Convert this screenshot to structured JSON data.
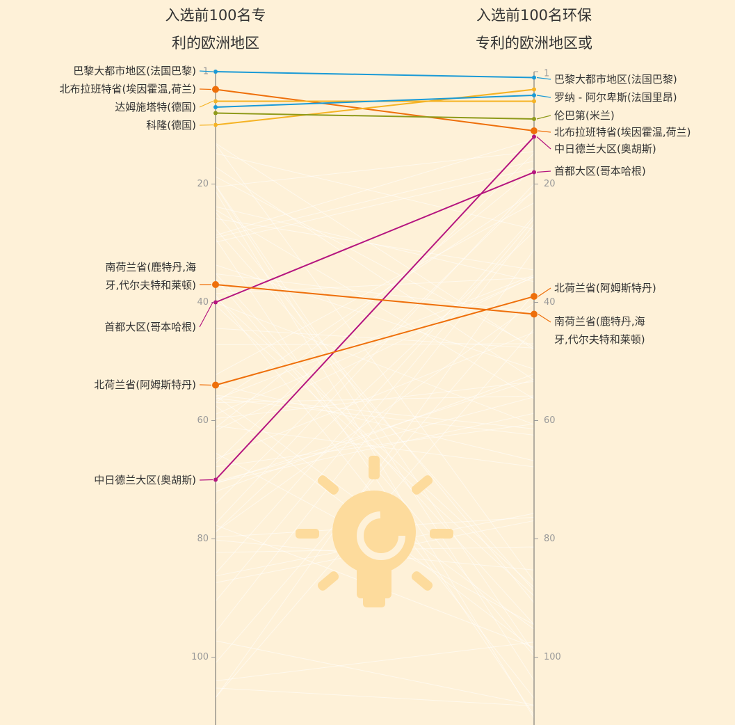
{
  "chart_data": {
    "type": "slope",
    "titles": [
      "入选前100名专\n利的欧洲地区",
      "入选前100名环保\n专利的欧洲地区或"
    ],
    "ylim": [
      1,
      111
    ],
    "yticks": [
      1,
      20,
      40,
      60,
      80,
      100
    ],
    "series": [
      {
        "name": "巴黎大都市地区(法国巴黎)",
        "color": "#1a9ad6",
        "marker": "small",
        "labels": [
          "left",
          "right"
        ],
        "values": [
          1,
          2
        ]
      },
      {
        "name": "北布拉班特省(埃因霍温,荷兰)",
        "color": "#ee6f0a",
        "marker": "large",
        "labels": [
          "left",
          "right"
        ],
        "values": [
          4,
          11
        ]
      },
      {
        "name": "达姆施塔特(德国)",
        "color": "#f5b324",
        "marker": "small",
        "labels": [
          "left"
        ],
        "values": [
          6,
          6
        ]
      },
      {
        "name": "科隆(德国)",
        "color": "#f5b324",
        "marker": "small",
        "labels": [
          "left"
        ],
        "values": [
          10,
          4
        ]
      },
      {
        "name": "罗纳 - 阿尔卑斯(法国里昂)",
        "color": "#1a9ad6",
        "marker": "small",
        "labels": [
          "right"
        ],
        "values": [
          7,
          5
        ]
      },
      {
        "name": "伦巴第(米兰)",
        "color": "#8f9a1a",
        "marker": "small",
        "labels": [
          "right"
        ],
        "values": [
          8,
          9
        ]
      },
      {
        "name": "中日德兰大区(奥胡斯)",
        "color": "#b5157f",
        "marker": "small",
        "labels": [
          "left",
          "right"
        ],
        "values": [
          70,
          12
        ]
      },
      {
        "name": "首都大区(哥本哈根)",
        "color": "#b5157f",
        "marker": "small",
        "labels": [
          "left",
          "right"
        ],
        "values": [
          40,
          18
        ]
      },
      {
        "name": "南荷兰省(鹿特丹,海\n牙,代尔夫特和莱顿)",
        "color": "#ee6f0a",
        "marker": "large",
        "labels": [
          "left",
          "right"
        ],
        "values": [
          37,
          42
        ]
      },
      {
        "name": "北荷兰省(阿姆斯特丹)",
        "color": "#ee6f0a",
        "marker": "large",
        "labels": [
          "left",
          "right"
        ],
        "values": [
          54,
          39
        ]
      }
    ]
  }
}
